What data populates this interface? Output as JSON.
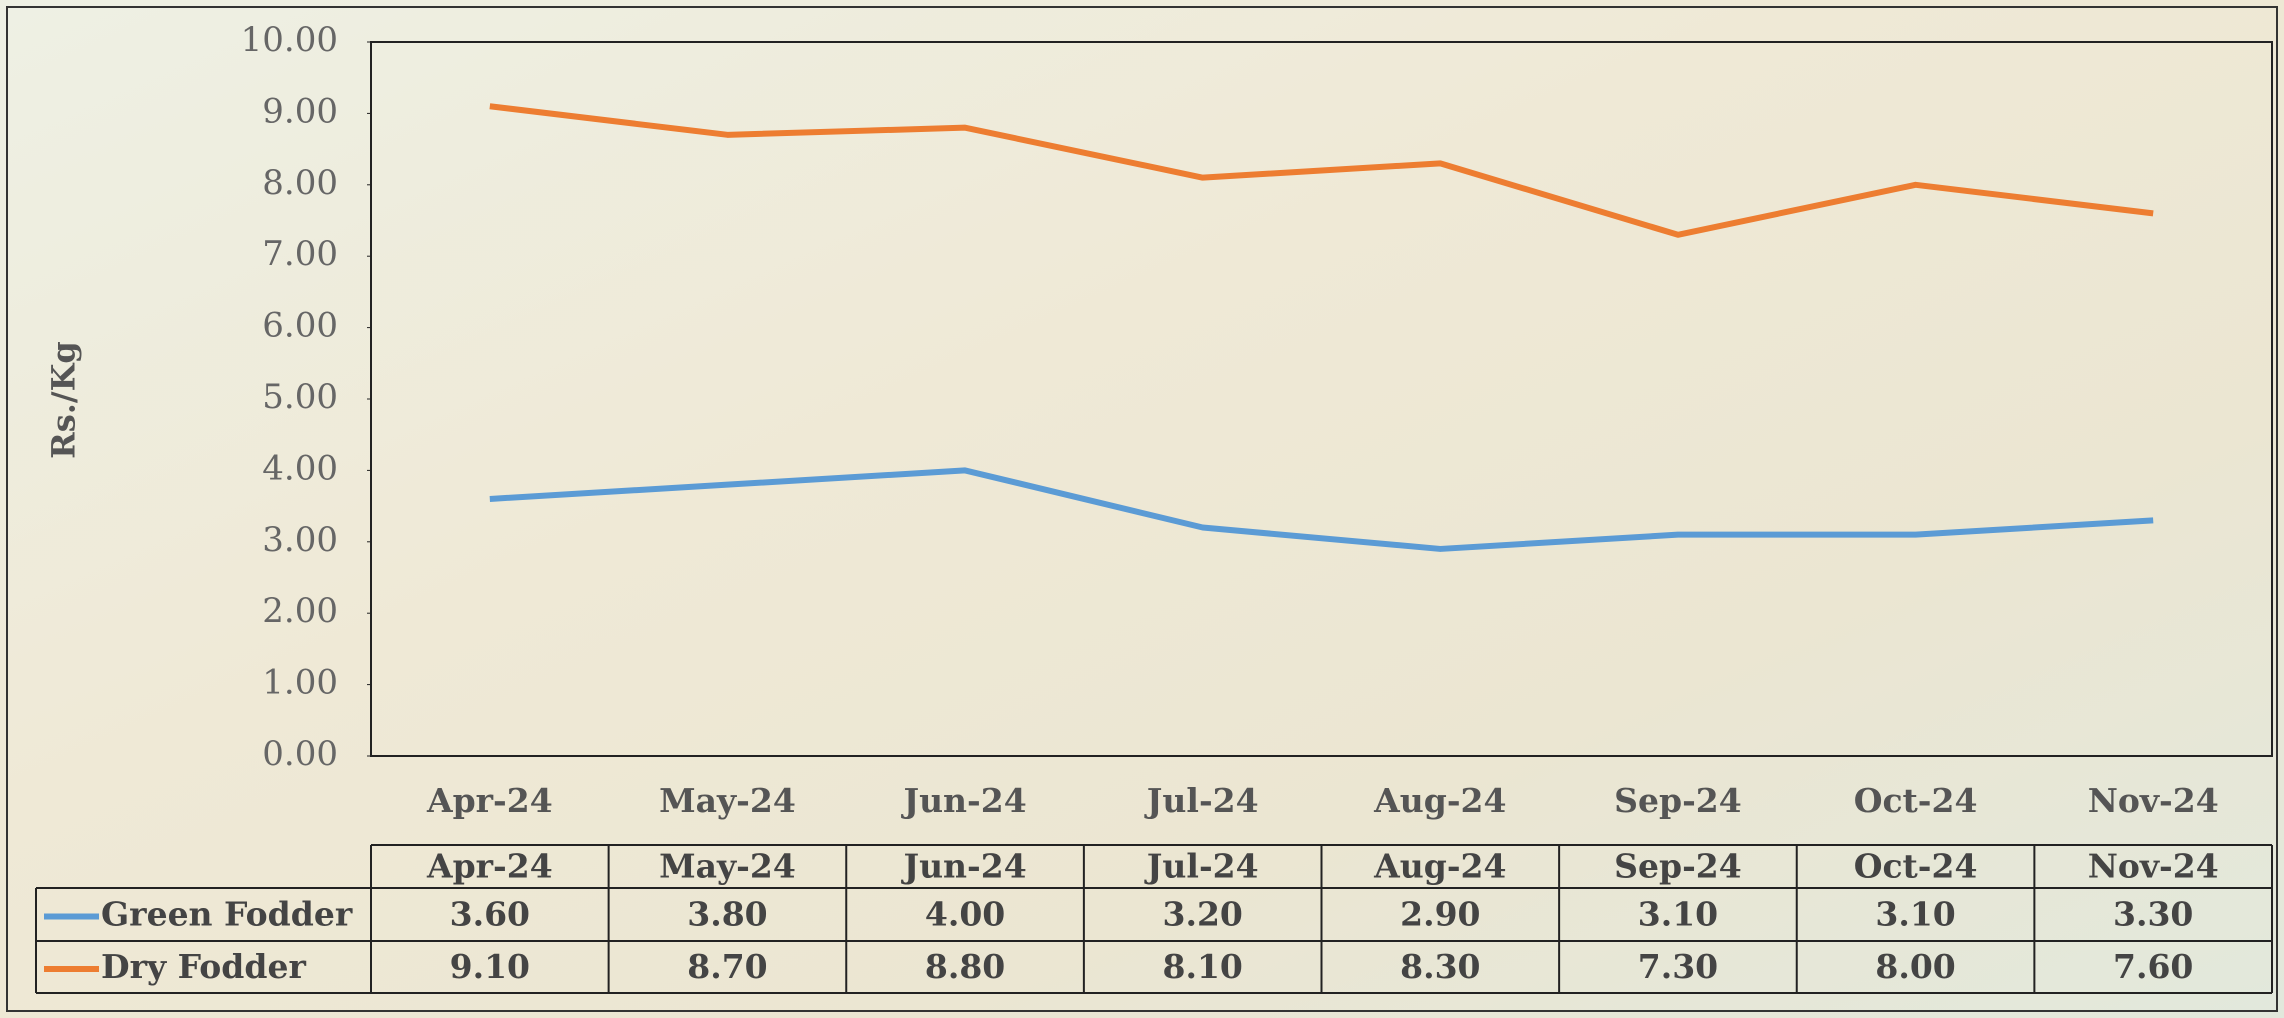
{
  "chart_data": {
    "type": "line",
    "y_label": "Rs./Kg",
    "categories": [
      "Apr-24",
      "May-24",
      "Jun-24",
      "Jul-24",
      "Aug-24",
      "Sep-24",
      "Oct-24",
      "Nov-24"
    ],
    "series": [
      {
        "name": "Green Fodder",
        "color": "#5b9bd5",
        "values": [
          3.6,
          3.8,
          4.0,
          3.2,
          2.9,
          3.1,
          3.1,
          3.3
        ],
        "value_labels": [
          "3.60",
          "3.80",
          "4.00",
          "3.20",
          "2.90",
          "3.10",
          "3.10",
          "3.30"
        ]
      },
      {
        "name": "Dry Fodder",
        "color": "#ed7d31",
        "values": [
          9.1,
          8.7,
          8.8,
          8.1,
          8.3,
          7.3,
          8.0,
          7.6
        ],
        "value_labels": [
          "9.10",
          "8.70",
          "8.80",
          "8.10",
          "8.30",
          "7.30",
          "8.00",
          "7.60"
        ]
      }
    ],
    "ylim": [
      0,
      10
    ],
    "yticks": [
      {
        "value": 0,
        "label": "0.00"
      },
      {
        "value": 1,
        "label": "1.00"
      },
      {
        "value": 2,
        "label": "2.00"
      },
      {
        "value": 3,
        "label": "3.00"
      },
      {
        "value": 4,
        "label": "4.00"
      },
      {
        "value": 5,
        "label": "5.00"
      },
      {
        "value": 6,
        "label": "6.00"
      },
      {
        "value": 7,
        "label": "7.00"
      },
      {
        "value": 8,
        "label": "8.00"
      },
      {
        "value": 9,
        "label": "9.00"
      },
      {
        "value": 10,
        "label": "10.00"
      }
    ]
  }
}
